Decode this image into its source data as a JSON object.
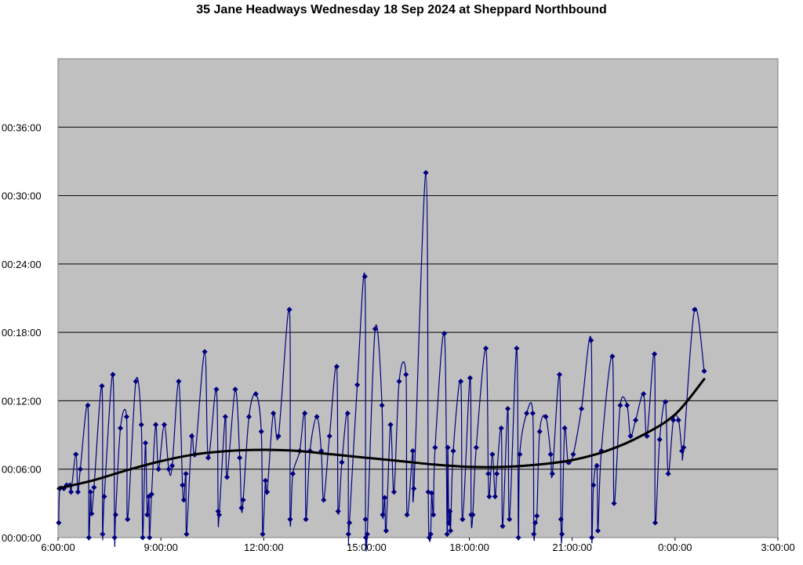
{
  "chart_data": {
    "type": "line",
    "title": "35 Jane Headways Wednesday 18 Sep 2024 at Sheppard Northbound",
    "x_unit": "hours_of_service_day",
    "y_unit": "minutes",
    "xlim": [
      6,
      27
    ],
    "ylim": [
      0,
      42
    ],
    "x_tick_values": [
      6,
      9,
      12,
      15,
      18,
      21,
      24,
      27
    ],
    "x_tick_labels": [
      "6:00:00",
      "9:00:00",
      "12:00:00",
      "15:00:00",
      "18:00:00",
      "21:00:00",
      "0:00:00",
      "3:00:00"
    ],
    "y_tick_values": [
      0,
      6,
      12,
      18,
      24,
      30,
      36
    ],
    "y_tick_labels": [
      "00:00:00",
      "00:06:00",
      "00:12:00",
      "00:18:00",
      "00:24:00",
      "00:30:00",
      "00:36:00"
    ],
    "grid": true,
    "legend": "none",
    "colors": {
      "plot_bg": "#c0c0c0",
      "series": "#000080",
      "trend": "#000000",
      "grid": "#000000"
    },
    "series": [
      {
        "values": [
          [
            6.02,
            1.3
          ],
          [
            6.05,
            4.3
          ],
          [
            6.17,
            4.3
          ],
          [
            6.25,
            4.6
          ],
          [
            6.35,
            4.6
          ],
          [
            6.38,
            4.0
          ],
          [
            6.52,
            7.3
          ],
          [
            6.58,
            4.0
          ],
          [
            6.65,
            6.0
          ],
          [
            6.87,
            11.6
          ],
          [
            6.9,
            0.0
          ],
          [
            6.95,
            4.0
          ],
          [
            6.98,
            2.1
          ],
          [
            7.05,
            4.4
          ],
          [
            7.28,
            13.3
          ],
          [
            7.3,
            0.3
          ],
          [
            7.35,
            3.6
          ],
          [
            7.6,
            14.3
          ],
          [
            7.65,
            0.0
          ],
          [
            7.68,
            2.0
          ],
          [
            7.82,
            9.6
          ],
          [
            8.0,
            10.6
          ],
          [
            8.03,
            1.6
          ],
          [
            8.27,
            13.7
          ],
          [
            8.43,
            9.9
          ],
          [
            8.47,
            0.0
          ],
          [
            8.55,
            8.3
          ],
          [
            8.6,
            2.0
          ],
          [
            8.65,
            3.6
          ],
          [
            8.67,
            0.0
          ],
          [
            8.73,
            3.8
          ],
          [
            8.85,
            9.9
          ],
          [
            8.93,
            6.0
          ],
          [
            9.1,
            9.9
          ],
          [
            9.23,
            6.0
          ],
          [
            9.33,
            6.3
          ],
          [
            9.52,
            13.7
          ],
          [
            9.63,
            4.6
          ],
          [
            9.67,
            3.3
          ],
          [
            9.73,
            5.6
          ],
          [
            9.75,
            0.3
          ],
          [
            9.9,
            8.9
          ],
          [
            10.0,
            7.3
          ],
          [
            10.28,
            16.3
          ],
          [
            10.38,
            7.0
          ],
          [
            10.62,
            13.0
          ],
          [
            10.67,
            2.3
          ],
          [
            10.7,
            2.0
          ],
          [
            10.88,
            10.6
          ],
          [
            10.93,
            5.3
          ],
          [
            11.17,
            13.0
          ],
          [
            11.3,
            7.0
          ],
          [
            11.35,
            2.6
          ],
          [
            11.4,
            3.3
          ],
          [
            11.57,
            10.6
          ],
          [
            11.77,
            12.6
          ],
          [
            11.93,
            9.3
          ],
          [
            11.97,
            0.3
          ],
          [
            12.05,
            5.0
          ],
          [
            12.1,
            4.0
          ],
          [
            12.28,
            10.9
          ],
          [
            12.43,
            8.9
          ],
          [
            12.75,
            20.0
          ],
          [
            12.77,
            1.6
          ],
          [
            12.85,
            5.6
          ],
          [
            13.05,
            7.6
          ],
          [
            13.2,
            10.9
          ],
          [
            13.23,
            1.6
          ],
          [
            13.35,
            7.6
          ],
          [
            13.55,
            10.6
          ],
          [
            13.68,
            7.6
          ],
          [
            13.75,
            3.3
          ],
          [
            13.92,
            8.9
          ],
          [
            14.13,
            15.0
          ],
          [
            14.17,
            2.3
          ],
          [
            14.28,
            6.6
          ],
          [
            14.45,
            10.9
          ],
          [
            14.47,
            0.3
          ],
          [
            14.5,
            1.3
          ],
          [
            14.73,
            13.4
          ],
          [
            14.95,
            22.9
          ],
          [
            14.97,
            1.6
          ],
          [
            14.98,
            0.0
          ],
          [
            15.02,
            0.3
          ],
          [
            15.25,
            18.3
          ],
          [
            15.45,
            11.6
          ],
          [
            15.47,
            2.0
          ],
          [
            15.53,
            3.5
          ],
          [
            15.57,
            0.6
          ],
          [
            15.7,
            9.9
          ],
          [
            15.8,
            4.0
          ],
          [
            15.95,
            13.7
          ],
          [
            16.15,
            14.3
          ],
          [
            16.18,
            2.0
          ],
          [
            16.35,
            7.6
          ],
          [
            16.38,
            4.3
          ],
          [
            16.73,
            32.0
          ],
          [
            16.8,
            4.0
          ],
          [
            16.83,
            0.0
          ],
          [
            16.87,
            0.3
          ],
          [
            16.9,
            3.9
          ],
          [
            16.95,
            2.0
          ],
          [
            17.0,
            7.9
          ],
          [
            17.27,
            17.9
          ],
          [
            17.35,
            0.3
          ],
          [
            17.37,
            7.9
          ],
          [
            17.4,
            1.3
          ],
          [
            17.43,
            2.3
          ],
          [
            17.45,
            0.6
          ],
          [
            17.53,
            7.6
          ],
          [
            17.75,
            13.7
          ],
          [
            17.8,
            1.6
          ],
          [
            18.02,
            14.0
          ],
          [
            18.05,
            2.0
          ],
          [
            18.1,
            2.0
          ],
          [
            18.2,
            7.9
          ],
          [
            18.48,
            16.6
          ],
          [
            18.55,
            5.6
          ],
          [
            18.58,
            3.6
          ],
          [
            18.67,
            7.3
          ],
          [
            18.75,
            3.6
          ],
          [
            18.8,
            5.6
          ],
          [
            18.93,
            9.6
          ],
          [
            18.97,
            1.0
          ],
          [
            19.12,
            11.3
          ],
          [
            19.17,
            1.6
          ],
          [
            19.38,
            16.6
          ],
          [
            19.43,
            0.0
          ],
          [
            19.47,
            7.3
          ],
          [
            19.67,
            10.9
          ],
          [
            19.85,
            10.9
          ],
          [
            19.88,
            0.3
          ],
          [
            19.92,
            1.3
          ],
          [
            19.97,
            1.9
          ],
          [
            20.05,
            9.3
          ],
          [
            20.23,
            10.6
          ],
          [
            20.37,
            7.3
          ],
          [
            20.42,
            5.6
          ],
          [
            20.63,
            14.3
          ],
          [
            20.67,
            1.6
          ],
          [
            20.7,
            0.3
          ],
          [
            20.78,
            9.6
          ],
          [
            20.88,
            6.6
          ],
          [
            21.03,
            7.3
          ],
          [
            21.27,
            11.3
          ],
          [
            21.55,
            17.3
          ],
          [
            21.57,
            0.0
          ],
          [
            21.62,
            4.6
          ],
          [
            21.72,
            6.3
          ],
          [
            21.75,
            0.6
          ],
          [
            21.85,
            7.6
          ],
          [
            22.17,
            15.9
          ],
          [
            22.22,
            3.0
          ],
          [
            22.4,
            11.6
          ],
          [
            22.6,
            11.6
          ],
          [
            22.7,
            8.9
          ],
          [
            22.85,
            10.3
          ],
          [
            23.08,
            12.6
          ],
          [
            23.18,
            8.9
          ],
          [
            23.4,
            16.1
          ],
          [
            23.42,
            1.3
          ],
          [
            23.55,
            8.6
          ],
          [
            23.72,
            11.9
          ],
          [
            23.8,
            5.6
          ],
          [
            23.95,
            10.3
          ],
          [
            24.1,
            10.3
          ],
          [
            24.2,
            7.6
          ],
          [
            24.25,
            7.9
          ],
          [
            24.57,
            20.0
          ],
          [
            24.85,
            14.6
          ]
        ]
      }
    ],
    "trendline": {
      "type": "polynomial",
      "values": [
        [
          6.0,
          4.3
        ],
        [
          7.0,
          5.0
        ],
        [
          8.0,
          5.9
        ],
        [
          9.0,
          6.7
        ],
        [
          10.0,
          7.3
        ],
        [
          11.0,
          7.6
        ],
        [
          12.0,
          7.7
        ],
        [
          13.0,
          7.6
        ],
        [
          14.0,
          7.3
        ],
        [
          15.0,
          7.0
        ],
        [
          16.0,
          6.7
        ],
        [
          17.0,
          6.4
        ],
        [
          18.0,
          6.2
        ],
        [
          19.0,
          6.2
        ],
        [
          20.0,
          6.4
        ],
        [
          21.0,
          6.8
        ],
        [
          22.0,
          7.6
        ],
        [
          23.0,
          8.9
        ],
        [
          24.0,
          10.8
        ],
        [
          24.85,
          13.9
        ]
      ]
    }
  }
}
